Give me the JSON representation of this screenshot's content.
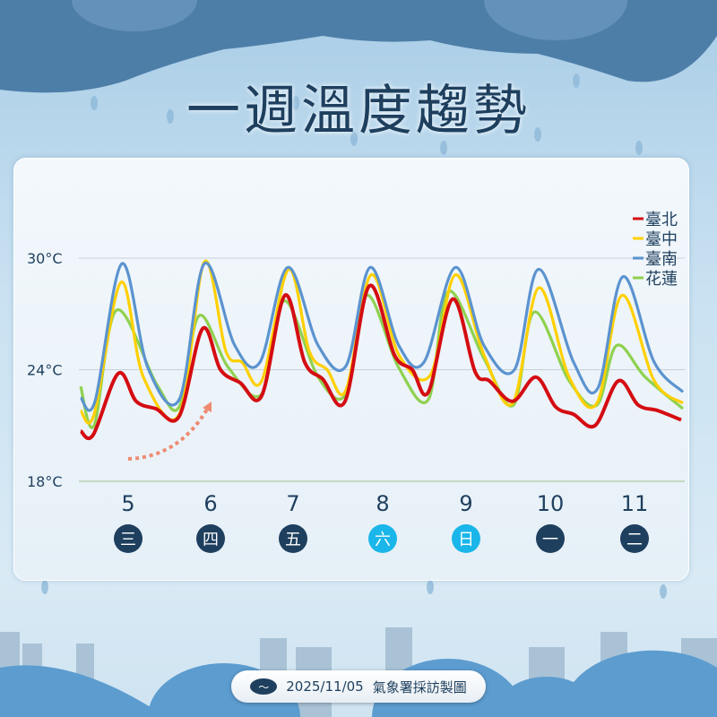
{
  "title": "一週溫度趨勢",
  "footer": {
    "date": "2025/11/05",
    "credit": "氣象署採訪製圖",
    "logo_icon": "cwa-logo"
  },
  "chart_data": {
    "type": "line",
    "x_unit": "hours from start of day 5",
    "xlim": [
      0,
      168
    ],
    "ylim": [
      18,
      30
    ],
    "yticks": [
      18,
      24,
      30
    ],
    "ytick_labels": [
      "18°C",
      "24°C",
      "30°C"
    ],
    "grid": true,
    "legend": "top-right",
    "days": [
      {
        "date": "5",
        "weekday": "三",
        "weekend": false
      },
      {
        "date": "6",
        "weekday": "四",
        "weekend": false
      },
      {
        "date": "7",
        "weekday": "五",
        "weekend": false
      },
      {
        "date": "8",
        "weekday": "六",
        "weekend": true
      },
      {
        "date": "9",
        "weekday": "日",
        "weekend": true
      },
      {
        "date": "10",
        "weekday": "一",
        "weekend": false
      },
      {
        "date": "11",
        "weekday": "二",
        "weekend": false
      }
    ],
    "colors": {
      "weekday": "#1e3f5e",
      "weekend": "#1ab6ea",
      "arrow": "#ef8a70"
    },
    "series": [
      {
        "name": "臺北",
        "color": "#d40d12",
        "points": [
          [
            0,
            20.7
          ],
          [
            3.5,
            20.5
          ],
          [
            10.5,
            23.8
          ],
          [
            15.5,
            22.3
          ],
          [
            21,
            21.9
          ],
          [
            27.5,
            21.5
          ],
          [
            34,
            26.2
          ],
          [
            39,
            24
          ],
          [
            44.5,
            23.3
          ],
          [
            50.5,
            22.6
          ],
          [
            57,
            28
          ],
          [
            62.5,
            24.4
          ],
          [
            67.5,
            23.5
          ],
          [
            73.75,
            22.3
          ],
          [
            80.5,
            28.5
          ],
          [
            87.5,
            24.8
          ],
          [
            92.5,
            24
          ],
          [
            97,
            22.8
          ],
          [
            103.75,
            27.8
          ],
          [
            110,
            23.9
          ],
          [
            114,
            23.4
          ],
          [
            120.5,
            22.3
          ],
          [
            127,
            23.6
          ],
          [
            132.5,
            22
          ],
          [
            137.5,
            21.6
          ],
          [
            143.5,
            21
          ],
          [
            150,
            23.4
          ],
          [
            155.5,
            22.1
          ],
          [
            161,
            21.8
          ],
          [
            167.5,
            21.3
          ]
        ]
      },
      {
        "name": "臺中",
        "color": "#ffd000",
        "points": [
          [
            0,
            21.8
          ],
          [
            3.75,
            21.6
          ],
          [
            11.25,
            28.7
          ],
          [
            17.5,
            23.6
          ],
          [
            27.5,
            21.6
          ],
          [
            34.5,
            29.8
          ],
          [
            40.5,
            25
          ],
          [
            45,
            24.4
          ],
          [
            50.5,
            23.4
          ],
          [
            58,
            29.4
          ],
          [
            63.75,
            25
          ],
          [
            68.75,
            24
          ],
          [
            74,
            22.9
          ],
          [
            81,
            29.1
          ],
          [
            88.75,
            24.8
          ],
          [
            97.5,
            23.7
          ],
          [
            104.5,
            29.1
          ],
          [
            112.5,
            24.8
          ],
          [
            120.5,
            22.2
          ],
          [
            127.75,
            28.4
          ],
          [
            136.25,
            23.6
          ],
          [
            144,
            22.2
          ],
          [
            151,
            28
          ],
          [
            160,
            23.4
          ],
          [
            168,
            22.2
          ]
        ]
      },
      {
        "name": "臺南",
        "color": "#5b93cf",
        "points": [
          [
            0,
            22.5
          ],
          [
            4,
            22.3
          ],
          [
            11.5,
            29.7
          ],
          [
            18.75,
            24.1
          ],
          [
            27.5,
            22.4
          ],
          [
            34.5,
            29.7
          ],
          [
            43,
            25.3
          ],
          [
            50,
            24.4
          ],
          [
            57.75,
            29.5
          ],
          [
            66.25,
            25.3
          ],
          [
            74,
            24.2
          ],
          [
            80.75,
            29.5
          ],
          [
            88.75,
            25.3
          ],
          [
            95.75,
            24.4
          ],
          [
            104.5,
            29.5
          ],
          [
            112.5,
            25.3
          ],
          [
            121,
            24
          ],
          [
            127.75,
            29.4
          ],
          [
            137.5,
            24.4
          ],
          [
            144.25,
            23
          ],
          [
            151.25,
            29
          ],
          [
            160,
            24.4
          ],
          [
            168,
            22.8
          ]
        ]
      },
      {
        "name": "花蓮",
        "color": "#8fd14f",
        "points": [
          [
            0,
            23.1
          ],
          [
            3.75,
            21
          ],
          [
            10,
            27.2
          ],
          [
            21.25,
            23.2
          ],
          [
            27.5,
            22
          ],
          [
            33,
            26.9
          ],
          [
            41.25,
            24.1
          ],
          [
            50.5,
            22.7
          ],
          [
            56.75,
            27.7
          ],
          [
            66.25,
            23.6
          ],
          [
            74,
            22.7
          ],
          [
            79.75,
            28
          ],
          [
            88.75,
            24.1
          ],
          [
            97,
            22.4
          ],
          [
            102.5,
            28.2
          ],
          [
            112.5,
            24.6
          ],
          [
            120.75,
            22.1
          ],
          [
            126.5,
            27.1
          ],
          [
            136.25,
            23.4
          ],
          [
            144,
            22.1
          ],
          [
            149.5,
            25.3
          ],
          [
            157.5,
            23.6
          ],
          [
            168,
            21.9
          ]
        ]
      }
    ]
  }
}
